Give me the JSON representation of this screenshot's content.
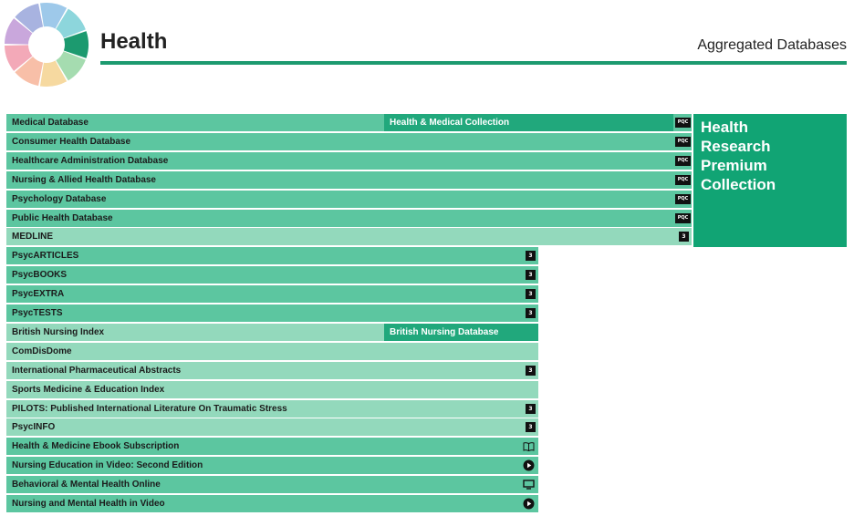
{
  "header": {
    "title": "Health",
    "subtitle": "Aggregated Databases"
  },
  "colors": {
    "rule": "#1c9a6f",
    "row_primary": "#5cc6a0",
    "row_light": "#93d9bc",
    "sub_bar": "#21a87c",
    "collection_block": "#11a474",
    "logo_segments": [
      "#9ec9ea",
      "#8dd6dc",
      "#1c9a6f",
      "#a5dcb0",
      "#f6d9a0",
      "#f8bfa8",
      "#f3a9b8",
      "#c9a7dc",
      "#a8b3e0"
    ]
  },
  "collection": {
    "lines": [
      "Health",
      "Research",
      "Premium",
      "Collection"
    ]
  },
  "rows": [
    {
      "label": "Medical Database",
      "sub": "Health & Medical Collection",
      "badge": "PQC"
    },
    {
      "label": "Consumer Health Database",
      "badge": "PQC"
    },
    {
      "label": "Healthcare Administration Database",
      "badge": "PQC"
    },
    {
      "label": "Nursing & Allied Health Database",
      "badge": "PQC"
    },
    {
      "label": "Psychology Database",
      "badge": "PQC"
    },
    {
      "label": "Public Health Database",
      "badge": "PQC"
    },
    {
      "label": "MEDLINE",
      "badge": "3"
    },
    {
      "label": "PsycARTICLES",
      "badge": "3"
    },
    {
      "label": "PsycBOOKS",
      "badge": "3"
    },
    {
      "label": "PsycEXTRA",
      "badge": "3"
    },
    {
      "label": "PsycTESTS",
      "badge": "3"
    },
    {
      "label": "British Nursing Index",
      "sub": "British Nursing Database"
    },
    {
      "label": "ComDisDome"
    },
    {
      "label": "International Pharmaceutical Abstracts",
      "badge": "3"
    },
    {
      "label": "Sports Medicine & Education Index"
    },
    {
      "label": "PILOTS: Published International Literature On Traumatic Stress",
      "badge": "3"
    },
    {
      "label": "PsycINFO",
      "badge": "3"
    },
    {
      "label": "Health & Medicine Ebook Subscription",
      "icon": "book-icon"
    },
    {
      "label": "Nursing Education in Video: Second Edition",
      "icon": "play-icon"
    },
    {
      "label": "Behavioral & Mental Health Online",
      "icon": "monitor-icon"
    },
    {
      "label": "Nursing and Mental Health in Video",
      "icon": "play-icon"
    }
  ]
}
